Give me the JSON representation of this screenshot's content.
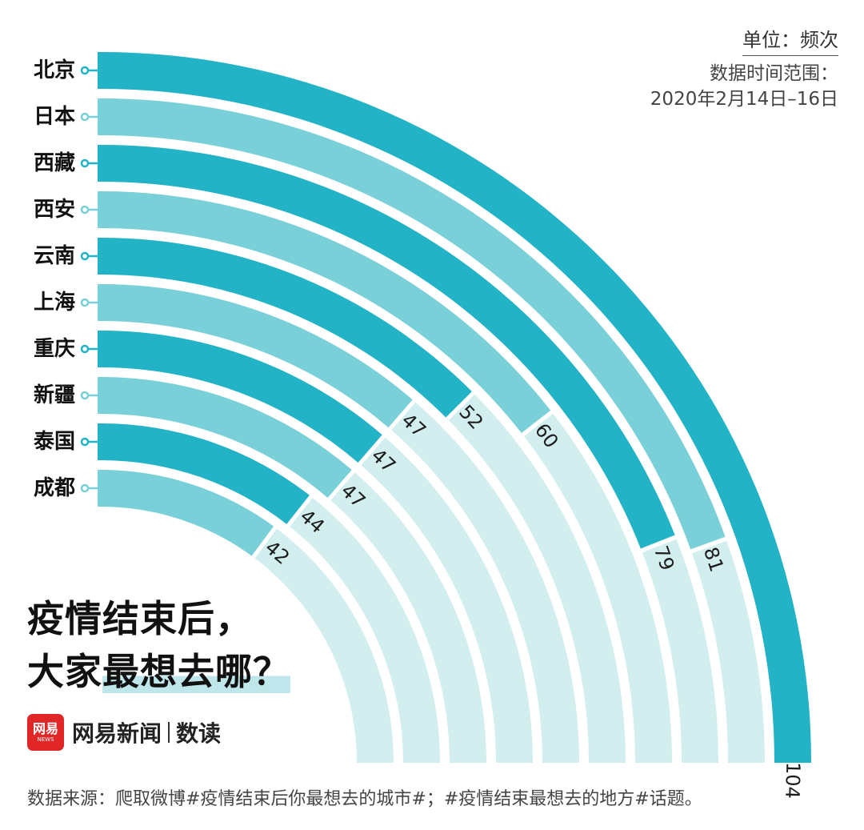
{
  "chart_data": {
    "type": "radial-bar",
    "title_line1": "疫情结束后，",
    "title_line2_a": "大家",
    "title_line2_b": "最想去哪？",
    "unit": "单位：频次",
    "range_label": "数据时间范围：",
    "range_value": "2020年2月14日–16日",
    "source": "数据来源：爬取微博#疫情结束后你最想去的城市#；#疫情结束最想去的地方#话题。",
    "categories": [
      "北京",
      "日本",
      "西藏",
      "西安",
      "云南",
      "上海",
      "重庆",
      "新疆",
      "泰国",
      "成都"
    ],
    "values": [
      104,
      81,
      79,
      60,
      52,
      47,
      47,
      47,
      44,
      42
    ],
    "colors": {
      "dark": "#23b3c6",
      "light": "#7ad0d9",
      "track": "#d2eeee"
    }
  },
  "brand": {
    "logo_cn": "网易",
    "logo_en": "NEWS",
    "name": "网易新闻",
    "sub": "数读"
  }
}
